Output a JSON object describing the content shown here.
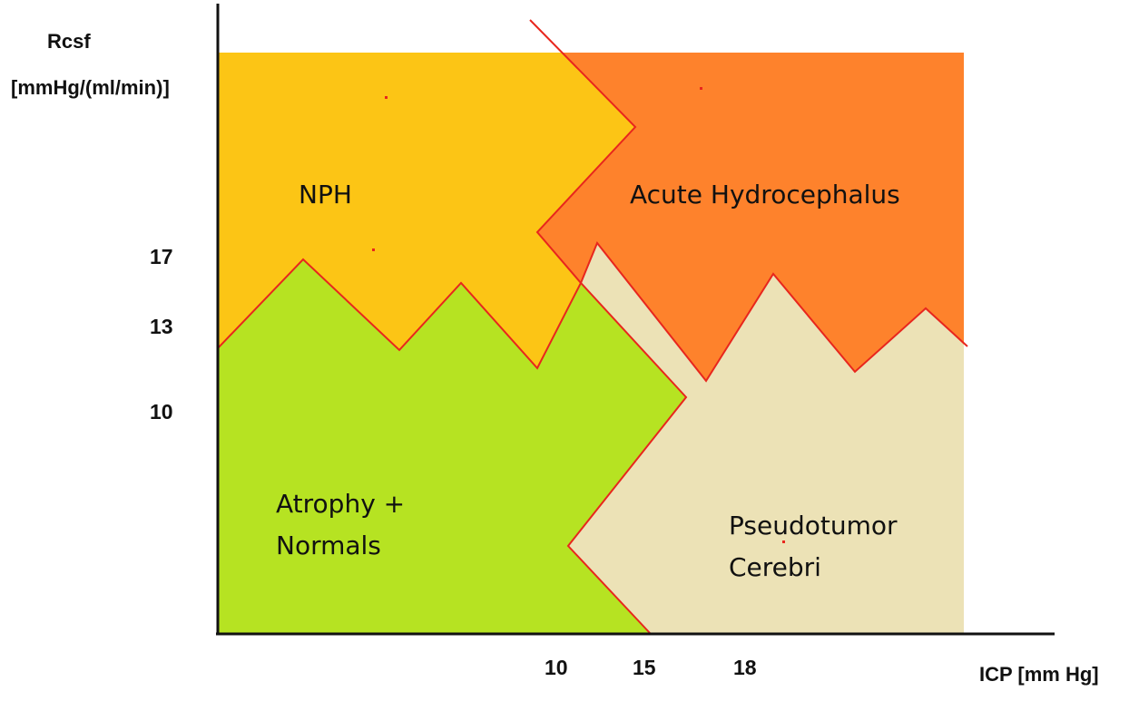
{
  "y_axis": {
    "title_line1": "Rcsf",
    "title_line2": "[mmHg/(ml/min)]",
    "ticks": [
      "17",
      "13",
      "10"
    ]
  },
  "x_axis": {
    "title": "ICP [mm Hg]",
    "ticks": [
      "10",
      "15",
      "18"
    ]
  },
  "regions": {
    "nph": {
      "label": "NPH",
      "color": "#fcc515"
    },
    "acute": {
      "label": "Acute Hydrocephalus",
      "color": "#fe822c"
    },
    "atrophy": {
      "label_line1": "Atrophy +",
      "label_line2": "Normals",
      "color": "#b6e322"
    },
    "pseudotumor": {
      "label_line1": "Pseudotumor",
      "label_line2": "Cerebri",
      "color": "#ece2b6"
    }
  },
  "border_color": "#e8261d"
}
